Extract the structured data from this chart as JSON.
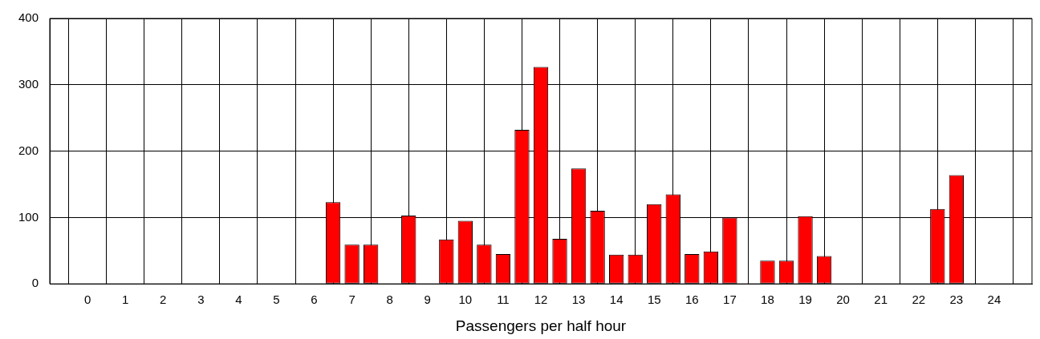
{
  "chart_data": {
    "type": "bar",
    "xlabel": "Passengers per half hour",
    "x": [
      0,
      0.5,
      1,
      1.5,
      2,
      2.5,
      3,
      3.5,
      4,
      4.5,
      5,
      5.5,
      6,
      6.5,
      7,
      7.5,
      8,
      8.5,
      9,
      9.5,
      10,
      10.5,
      11,
      11.5,
      12,
      12.5,
      13,
      13.5,
      14,
      14.5,
      15,
      15.5,
      16,
      16.5,
      17,
      17.5,
      18,
      18.5,
      19,
      19.5,
      20,
      20.5,
      21,
      21.5,
      22,
      22.5,
      23,
      23.5,
      24
    ],
    "values": [
      0,
      0,
      0,
      0,
      0,
      0,
      0,
      0,
      0,
      0,
      0,
      0,
      0,
      123,
      59,
      59,
      0,
      103,
      0,
      67,
      95,
      59,
      45,
      232,
      327,
      68,
      174,
      110,
      44,
      44,
      120,
      135,
      45,
      49,
      100,
      0,
      35,
      35,
      102,
      42,
      0,
      0,
      0,
      0,
      0,
      113,
      164,
      0,
      0
    ],
    "color": "#ff0000",
    "xlim": [
      -1,
      25
    ],
    "xticks": [
      0,
      1,
      2,
      3,
      4,
      5,
      6,
      7,
      8,
      9,
      10,
      11,
      12,
      13,
      14,
      15,
      16,
      17,
      18,
      19,
      20,
      21,
      22,
      23,
      24
    ],
    "ylim": [
      0,
      400
    ],
    "yticks": [
      0,
      100,
      200,
      300,
      400
    ],
    "grid": true,
    "legend": false
  }
}
